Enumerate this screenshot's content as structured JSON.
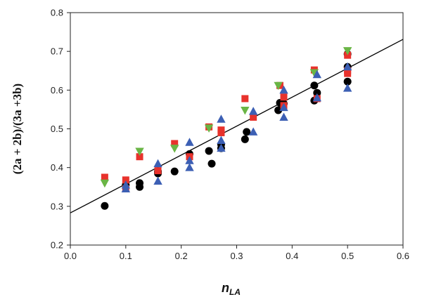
{
  "chart_data": {
    "type": "scatter",
    "title": "",
    "xlabel": {
      "main": "n",
      "subscript": "LA"
    },
    "ylabel": "(2a + 2b)/(3a +3b)",
    "xlim": [
      0.0,
      0.6
    ],
    "ylim": [
      0.2,
      0.8
    ],
    "x_ticks": [
      "0.0",
      "0.1",
      "0.2",
      "0.3",
      "0.4",
      "0.5",
      "0.6"
    ],
    "y_ticks": [
      "0.2",
      "0.3",
      "0.4",
      "0.5",
      "0.6",
      "0.7",
      "0.8"
    ],
    "grid": false,
    "legend": "none",
    "trendline": {
      "x": [
        0.0,
        0.6
      ],
      "y": [
        0.283,
        0.731
      ],
      "color": "#000000"
    },
    "series": [
      {
        "marker": "circle",
        "color": "#000000",
        "points": [
          [
            0.062,
            0.301
          ],
          [
            0.1,
            0.355
          ],
          [
            0.125,
            0.35
          ],
          [
            0.125,
            0.36
          ],
          [
            0.158,
            0.39
          ],
          [
            0.158,
            0.385
          ],
          [
            0.188,
            0.39
          ],
          [
            0.215,
            0.435
          ],
          [
            0.25,
            0.443
          ],
          [
            0.255,
            0.41
          ],
          [
            0.272,
            0.46
          ],
          [
            0.272,
            0.45
          ],
          [
            0.315,
            0.473
          ],
          [
            0.318,
            0.492
          ],
          [
            0.375,
            0.548
          ],
          [
            0.378,
            0.567
          ],
          [
            0.385,
            0.565
          ],
          [
            0.44,
            0.573
          ],
          [
            0.44,
            0.612
          ],
          [
            0.445,
            0.593
          ],
          [
            0.5,
            0.622
          ],
          [
            0.5,
            0.66
          ],
          [
            0.5,
            0.693
          ]
        ]
      },
      {
        "marker": "square",
        "color": "#e8322c",
        "points": [
          [
            0.062,
            0.375
          ],
          [
            0.1,
            0.368
          ],
          [
            0.1,
            0.345
          ],
          [
            0.125,
            0.428
          ],
          [
            0.158,
            0.392
          ],
          [
            0.188,
            0.462
          ],
          [
            0.215,
            0.428
          ],
          [
            0.25,
            0.505
          ],
          [
            0.272,
            0.497
          ],
          [
            0.272,
            0.49
          ],
          [
            0.315,
            0.578
          ],
          [
            0.33,
            0.53
          ],
          [
            0.378,
            0.612
          ],
          [
            0.385,
            0.582
          ],
          [
            0.385,
            0.56
          ],
          [
            0.44,
            0.652
          ],
          [
            0.445,
            0.578
          ],
          [
            0.5,
            0.69
          ],
          [
            0.5,
            0.643
          ],
          [
            0.5,
            0.65
          ]
        ]
      },
      {
        "marker": "triangle-down",
        "color": "#6ab545",
        "points": [
          [
            0.062,
            0.36
          ],
          [
            0.125,
            0.442
          ],
          [
            0.188,
            0.45
          ],
          [
            0.25,
            0.502
          ],
          [
            0.315,
            0.548
          ],
          [
            0.375,
            0.612
          ],
          [
            0.44,
            0.645
          ],
          [
            0.5,
            0.702
          ]
        ]
      },
      {
        "marker": "triangle-up",
        "color": "#3c5fb4",
        "points": [
          [
            0.1,
            0.345
          ],
          [
            0.1,
            0.355
          ],
          [
            0.158,
            0.365
          ],
          [
            0.158,
            0.41
          ],
          [
            0.215,
            0.4
          ],
          [
            0.215,
            0.418
          ],
          [
            0.215,
            0.465
          ],
          [
            0.272,
            0.45
          ],
          [
            0.272,
            0.525
          ],
          [
            0.272,
            0.47
          ],
          [
            0.33,
            0.545
          ],
          [
            0.33,
            0.492
          ],
          [
            0.385,
            0.6
          ],
          [
            0.385,
            0.53
          ],
          [
            0.385,
            0.555
          ],
          [
            0.445,
            0.58
          ],
          [
            0.445,
            0.64
          ],
          [
            0.5,
            0.605
          ],
          [
            0.5,
            0.66
          ]
        ]
      }
    ]
  }
}
